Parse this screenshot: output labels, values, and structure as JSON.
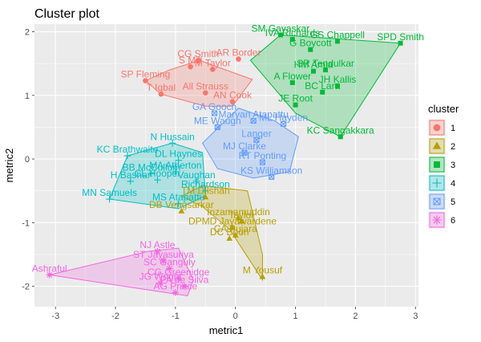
{
  "chart_data": {
    "type": "scatter",
    "title": "Cluster plot",
    "xlabel": "metric1",
    "ylabel": "metric2",
    "xlim": [
      -3.35,
      3.05
    ],
    "ylim": [
      -2.32,
      2.12
    ],
    "xticks": [
      "-3",
      "-2",
      "-1",
      "0",
      "1",
      "2",
      "3"
    ],
    "yticks": [
      "-2",
      "-1",
      "0",
      "1",
      "2"
    ],
    "legend": {
      "title": "cluster",
      "placement": "right",
      "entries": [
        "1",
        "2",
        "3",
        "4",
        "5",
        "6"
      ]
    },
    "clusters": [
      {
        "id": "1",
        "color": "#F8766D",
        "symbol": "circle",
        "hull": [
          [
            -1.5,
            1.23
          ],
          [
            -1.24,
            1.02
          ],
          [
            -0.5,
            0.83
          ],
          [
            -0.05,
            0.83
          ],
          [
            0.28,
            1.25
          ],
          [
            -0.6,
            1.55
          ],
          [
            -1.1,
            1.4
          ]
        ],
        "points": [
          {
            "label": "CG Smith",
            "x": -0.62,
            "y": 1.55
          },
          {
            "label": "AR Border",
            "x": 0.05,
            "y": 1.57
          },
          {
            "label": "S Mill",
            "x": -0.75,
            "y": 1.45
          },
          {
            "label": "M Taylor",
            "x": -0.38,
            "y": 1.41
          },
          {
            "label": "SP Fleming",
            "x": -1.5,
            "y": 1.23
          },
          {
            "label": "T Iqbal",
            "x": -1.24,
            "y": 1.02
          },
          {
            "label": "All Strauss",
            "x": -0.5,
            "y": 1.04
          },
          {
            "label": "AN Cook",
            "x": -0.05,
            "y": 0.9
          }
        ]
      },
      {
        "id": "2",
        "color": "#B79F00",
        "symbol": "triangle",
        "hull": [
          [
            -0.9,
            -0.58
          ],
          [
            -0.55,
            -0.42
          ],
          [
            0.2,
            -0.5
          ],
          [
            0.45,
            -1.5
          ],
          [
            0.45,
            -1.9
          ],
          [
            -0.1,
            -1.1
          ],
          [
            -0.55,
            -0.75
          ]
        ],
        "points": [
          {
            "label": "TM Dilshan",
            "x": -0.5,
            "y": -0.6
          },
          {
            "label": "DB Vengsarkar",
            "x": -0.9,
            "y": -0.82
          },
          {
            "label": "Inzamamuddin",
            "x": 0.05,
            "y": -0.93
          },
          {
            "label": "DPMD Jayawardene",
            "x": -0.05,
            "y": -1.08
          },
          {
            "label": "Taylor",
            "x": 0.1,
            "y": -0.98
          },
          {
            "label": "CA Pujara",
            "x": 0.0,
            "y": -1.2
          },
          {
            "label": "DC Boon",
            "x": -0.1,
            "y": -1.25
          },
          {
            "label": "M Yousuf",
            "x": 0.45,
            "y": -1.85
          }
        ]
      },
      {
        "id": "3",
        "color": "#00BA38",
        "symbol": "square",
        "hull": [
          [
            0.75,
            1.95
          ],
          [
            2.75,
            1.82
          ],
          [
            1.75,
            0.35
          ],
          [
            1.0,
            0.72
          ],
          [
            0.25,
            1.55
          ]
        ],
        "points": [
          {
            "label": "SM Gavaskar",
            "x": 0.75,
            "y": 1.95
          },
          {
            "label": "IVA Richards",
            "x": 0.95,
            "y": 1.88
          },
          {
            "label": "GS Chappell",
            "x": 1.7,
            "y": 1.85
          },
          {
            "label": "SPD Smith",
            "x": 2.75,
            "y": 1.82
          },
          {
            "label": "G Boycott",
            "x": 1.25,
            "y": 1.72
          },
          {
            "label": "HM Amla",
            "x": 1.3,
            "y": 1.38
          },
          {
            "label": "SR Tendulkar",
            "x": 1.5,
            "y": 1.4
          },
          {
            "label": "A Flower",
            "x": 0.95,
            "y": 1.2
          },
          {
            "label": "JH Kallis",
            "x": 1.7,
            "y": 1.15
          },
          {
            "label": "BC Lara",
            "x": 1.45,
            "y": 1.05
          },
          {
            "label": "JE Root",
            "x": 1.0,
            "y": 0.85
          },
          {
            "label": "KC Sangakkara",
            "x": 1.75,
            "y": 0.35
          }
        ]
      },
      {
        "id": "4",
        "color": "#00BFC4",
        "symbol": "plus",
        "hull": [
          [
            -2.1,
            -0.63
          ],
          [
            -1.8,
            0.05
          ],
          [
            -1.05,
            0.25
          ],
          [
            -0.55,
            0.1
          ],
          [
            -0.5,
            -0.58
          ],
          [
            -0.95,
            -0.78
          ]
        ],
        "points": [
          {
            "label": "N Hussain",
            "x": -1.05,
            "y": 0.25
          },
          {
            "label": "KC Brathwaite",
            "x": -1.8,
            "y": 0.05
          },
          {
            "label": "DL Haynes",
            "x": -0.95,
            "y": -0.02
          },
          {
            "label": "BB McCullum",
            "x": -1.4,
            "y": -0.23
          },
          {
            "label": "MA Atherton",
            "x": -1.0,
            "y": -0.2
          },
          {
            "label": "H Bashar",
            "x": -1.75,
            "y": -0.35
          },
          {
            "label": "CL Hooper",
            "x": -1.3,
            "y": -0.33
          },
          {
            "label": "MN Samuels",
            "x": -2.1,
            "y": -0.63
          },
          {
            "label": "MS Atapattu",
            "x": -0.95,
            "y": -0.7
          },
          {
            "label": "Vaughan",
            "x": -0.65,
            "y": -0.35
          },
          {
            "label": "Richardson",
            "x": -0.5,
            "y": -0.5
          }
        ]
      },
      {
        "id": "5",
        "color": "#619CFF",
        "symbol": "square-x",
        "hull": [
          [
            -0.55,
            0.25
          ],
          [
            0.05,
            0.8
          ],
          [
            0.65,
            0.6
          ],
          [
            1.05,
            0.35
          ],
          [
            0.9,
            -0.2
          ],
          [
            0.3,
            -0.3
          ],
          [
            -0.3,
            -0.15
          ]
        ],
        "points": [
          {
            "label": "GA Gooch",
            "x": -0.35,
            "y": 0.72
          },
          {
            "label": "ME Waugh",
            "x": -0.3,
            "y": 0.5
          },
          {
            "label": "Marvan Atapattu",
            "x": 0.3,
            "y": 0.6
          },
          {
            "label": "ML Hayden",
            "x": 0.8,
            "y": 0.55
          },
          {
            "label": "Langer",
            "x": 0.35,
            "y": 0.3
          },
          {
            "label": "RT Ponting",
            "x": 0.45,
            "y": -0.05
          },
          {
            "label": "KS Williamson",
            "x": 0.6,
            "y": -0.28
          },
          {
            "label": "MJ Clarke",
            "x": 0.15,
            "y": 0.1
          }
        ]
      },
      {
        "id": "6",
        "color": "#F564E3",
        "symbol": "asterisk",
        "hull": [
          [
            -3.1,
            -1.82
          ],
          [
            -1.45,
            -1.45
          ],
          [
            -0.95,
            -1.4
          ],
          [
            -0.7,
            -1.9
          ],
          [
            -0.8,
            -2.15
          ],
          [
            -1.5,
            -2.05
          ]
        ],
        "points": [
          {
            "label": "Ashraful",
            "x": -3.1,
            "y": -1.82
          },
          {
            "label": "NJ Astle",
            "x": -1.3,
            "y": -1.45
          },
          {
            "label": "ST Jayasuriya",
            "x": -1.2,
            "y": -1.6
          },
          {
            "label": "SC Ganguly",
            "x": -1.1,
            "y": -1.72
          },
          {
            "label": "CG Greenidge",
            "x": -0.95,
            "y": -1.88
          },
          {
            "label": "JG Wright",
            "x": -1.25,
            "y": -1.95
          },
          {
            "label": "PA de Silva",
            "x": -0.85,
            "y": -2.0
          },
          {
            "label": "AG Prince",
            "x": -1.0,
            "y": -2.1
          }
        ]
      }
    ]
  }
}
